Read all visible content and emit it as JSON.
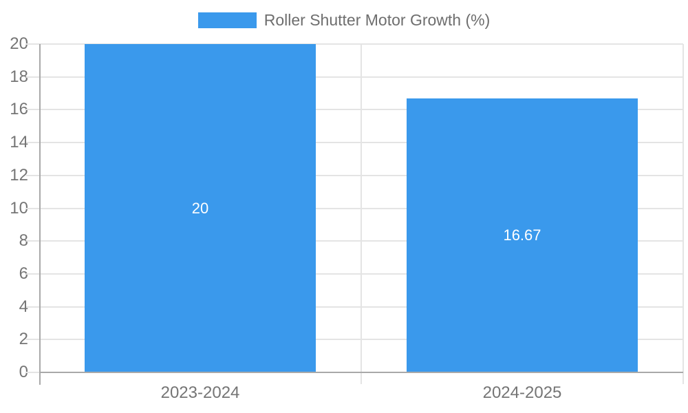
{
  "chart_data": {
    "type": "bar",
    "title": "Roller Shutter Motor Growth (%)",
    "categories": [
      "2023-2024",
      "2024-2025"
    ],
    "series": [
      {
        "name": "Roller Shutter Motor Growth (%)",
        "values": [
          20,
          16.67
        ]
      }
    ],
    "value_labels": [
      "20",
      "16.67"
    ],
    "xlabel": "",
    "ylabel": "",
    "ylim": [
      0,
      20
    ],
    "yticks": [
      0,
      2,
      4,
      6,
      8,
      10,
      12,
      14,
      16,
      18,
      20
    ],
    "grid": true,
    "legend_position": "top",
    "bar_width_fraction": 0.72,
    "colors": {
      "bar": "#3A99EC",
      "axis_line": "#A9A9A9",
      "grid_line": "#E4E4E4",
      "tick_label": "#757575",
      "legend_label": "#6E6E6E",
      "value_label": "#FFFFFF",
      "background": "#FFFFFF"
    }
  }
}
